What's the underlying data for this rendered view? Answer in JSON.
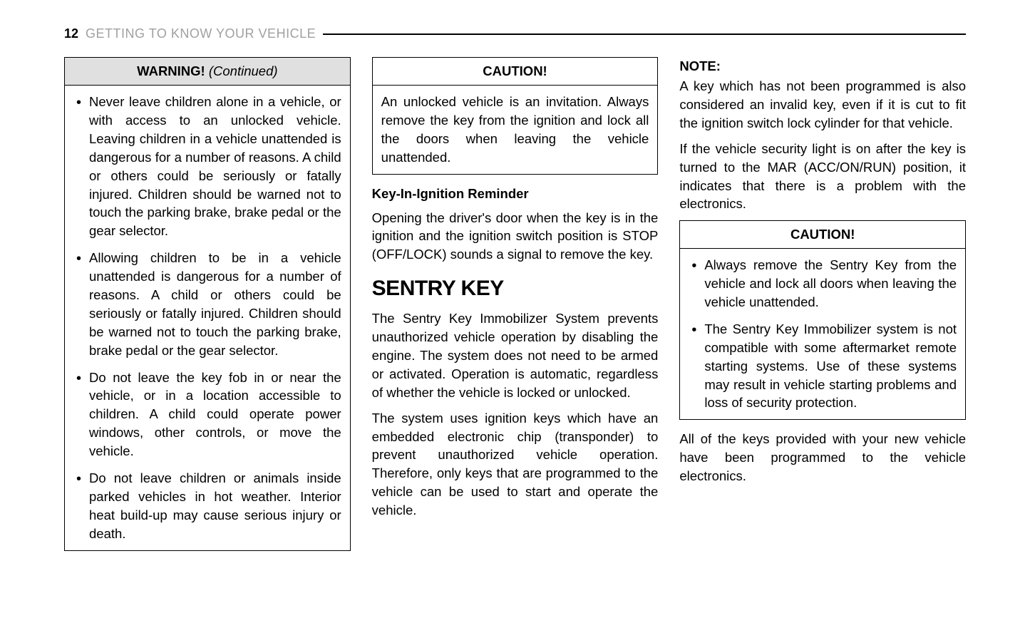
{
  "header": {
    "page_number": "12",
    "section_title": "GETTING TO KNOW YOUR VEHICLE"
  },
  "column1": {
    "warning_box": {
      "title_strong": "WARNING!",
      "title_cont": "(Continued)",
      "items": [
        "Never leave children alone in a vehicle, or with access to an unlocked vehicle. Leaving children in a vehicle unattended is dangerous for a number of reasons. A child or others could be seriously or fatally injured. Children should be warned not to touch the parking brake, brake pedal or the gear selector.",
        "Allowing children to be in a vehicle unattended is dangerous for a number of reasons. A child or others could be seriously or fatally injured. Children should be warned not to touch the parking brake, brake pedal or the gear selector.",
        "Do not leave the key fob in or near the vehicle, or in a location accessible to children. A child could operate power windows, other controls, or move the vehicle.",
        "Do not leave children or animals inside parked vehicles in hot weather. Interior heat build-up may cause serious injury or death."
      ]
    }
  },
  "column2": {
    "caution_box": {
      "title": "CAUTION!",
      "text": "An unlocked vehicle is an invitation. Always remove the key from the ignition and lock all the doors when leaving the vehicle unattended."
    },
    "reminder_heading": "Key-In-Ignition Reminder",
    "reminder_body": "Opening the driver's door when the key is in the ignition and the ignition switch position is STOP (OFF/LOCK) sounds a signal to remove the key.",
    "sentry_heading": "SENTRY KEY",
    "sentry_p1": "The Sentry Key Immobilizer System prevents unauthorized vehicle operation by disabling the engine. The system does not need to be armed or activated. Operation is automatic, regardless of whether the vehicle is locked or unlocked.",
    "sentry_p2": "The system uses ignition keys which have an embedded electronic chip (transponder) to prevent unauthorized vehicle operation. Therefore, only keys that are programmed to the vehicle can be used to start and operate the vehicle."
  },
  "column3": {
    "note_label": "NOTE:",
    "note_p1": "A key which has not been programmed is also considered an invalid key, even if it is cut to fit the ignition switch lock cylinder for that vehicle.",
    "note_p2": "If the vehicle security light is on after the key is turned to the MAR (ACC/ON/RUN) position, it indicates that there is a problem with the electronics.",
    "caution_box": {
      "title": "CAUTION!",
      "items": [
        "Always remove the Sentry Key from the vehicle and lock all doors when leaving the vehicle unattended.",
        "The Sentry Key Immobilizer system is not compatible with some aftermarket remote starting systems. Use of these systems may result in vehicle starting problems and loss of security protection."
      ]
    },
    "closing_p": "All of the keys provided with your new vehicle have been programmed to the vehicle electronics."
  }
}
